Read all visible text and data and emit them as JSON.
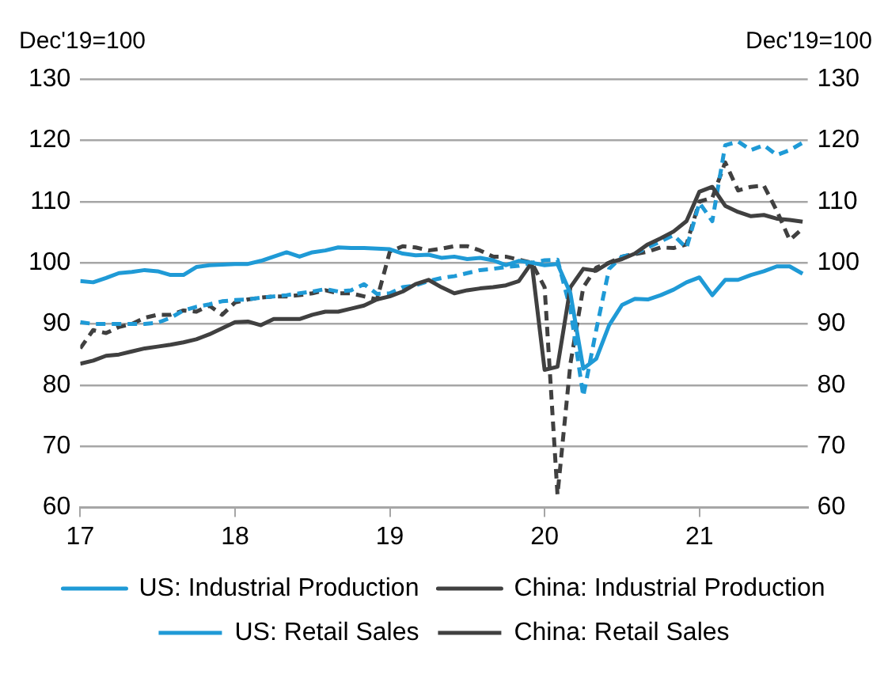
{
  "chart_data": {
    "type": "line",
    "ylabel": "Dec'19=100",
    "y2label": "Dec'19=100",
    "x": [
      17,
      17.0833,
      17.1667,
      17.25,
      17.3333,
      17.4167,
      17.5,
      17.5833,
      17.6667,
      17.75,
      17.8333,
      17.9167,
      18,
      18.0833,
      18.1667,
      18.25,
      18.3333,
      18.4167,
      18.5,
      18.5833,
      18.6667,
      18.75,
      18.8333,
      18.9167,
      19,
      19.0833,
      19.1667,
      19.25,
      19.3333,
      19.4167,
      19.5,
      19.5833,
      19.6667,
      19.75,
      19.8333,
      19.9167,
      20,
      20.0833,
      20.1667,
      20.25,
      20.3333,
      20.4167,
      20.5,
      20.5833,
      20.6667,
      20.75,
      20.8333,
      20.9167,
      21,
      21.0833,
      21.1667,
      21.25,
      21.3333,
      21.4167,
      21.5,
      21.5833,
      21.6667
    ],
    "series": [
      {
        "name": "US: Industrial Production",
        "color": "#1f9ad6",
        "line_style": "solid",
        "values": [
          97,
          96.8,
          97.5,
          98.3,
          98.5,
          98.8,
          98.6,
          98,
          98,
          99.3,
          99.6,
          99.7,
          99.8,
          99.8,
          100.3,
          101,
          101.7,
          101,
          101.7,
          102,
          102.5,
          102.4,
          102.4,
          102.3,
          102.2,
          101.5,
          101.2,
          101.3,
          100.8,
          101,
          100.6,
          100.8,
          100.4,
          99.6,
          100.3,
          100,
          99.6,
          99.8,
          95,
          82.7,
          84.3,
          89.8,
          93.1,
          94.1,
          94,
          94.7,
          95.6,
          96.8,
          97.6,
          94.7,
          97.2,
          97.2,
          98,
          98.6,
          99.4,
          99.4,
          98.2
        ]
      },
      {
        "name": "China: Industrial Production",
        "color": "#404040",
        "line_style": "solid",
        "values": [
          83.5,
          84,
          84.8,
          85,
          85.5,
          86,
          86.3,
          86.6,
          87,
          87.5,
          88.3,
          89.3,
          90.3,
          90.4,
          89.8,
          90.8,
          90.8,
          90.8,
          91.5,
          92,
          92,
          92.5,
          93,
          94,
          94.5,
          95.3,
          96.5,
          97.2,
          96,
          95,
          95.5,
          95.8,
          96,
          96.3,
          97,
          100,
          82.5,
          83,
          96,
          99,
          98.7,
          100,
          100.6,
          101.5,
          103,
          104,
          105.1,
          106.8,
          111.6,
          112.4,
          109.3,
          108.3,
          107.6,
          107.8,
          107.2,
          107,
          106.7
        ]
      },
      {
        "name": "US: Retail Sales",
        "color": "#1f9ad6",
        "line_style": "dashed",
        "values": [
          90.3,
          90,
          90,
          90,
          90,
          90,
          90.2,
          91,
          92.2,
          92.8,
          93.2,
          93.7,
          93.9,
          94,
          94.3,
          94.5,
          94.7,
          95,
          95.3,
          95.7,
          95.3,
          95.5,
          96.5,
          94.9,
          95,
          96,
          96.3,
          97,
          97.5,
          97.8,
          98.3,
          98.8,
          99,
          99.3,
          99.5,
          100,
          100.4,
          100.5,
          92.4,
          78.2,
          89,
          99,
          101,
          101.5,
          102.5,
          103.5,
          104.5,
          102.4,
          109.8,
          106.8,
          119.2,
          119.8,
          118.4,
          119.2,
          117.6,
          118.4,
          119.6
        ]
      },
      {
        "name": "China: Retail Sales",
        "color": "#404040",
        "line_style": "dashed",
        "values": [
          86,
          89,
          88.5,
          89.5,
          90,
          91,
          91.5,
          91.5,
          92.2,
          92,
          93,
          91.5,
          93.5,
          94,
          94.3,
          94.5,
          94.5,
          94.7,
          95,
          95.5,
          95,
          95,
          94.5,
          94,
          101.8,
          102.7,
          102.5,
          102,
          102.3,
          102.7,
          102.7,
          102,
          101,
          101,
          100.5,
          100,
          96,
          62.1,
          83.5,
          96,
          99.2,
          100,
          101,
          101.4,
          101.8,
          102.5,
          102.4,
          103,
          110,
          110.6,
          116.4,
          111.8,
          112.4,
          112.6,
          108.5,
          103.7,
          105.6
        ]
      }
    ],
    "xlim": [
      17,
      21.7
    ],
    "xticks": [
      17,
      18,
      19,
      20,
      21
    ],
    "ylim": [
      60,
      130
    ],
    "yticks": [
      60,
      70,
      80,
      90,
      100,
      110,
      120,
      130
    ],
    "y2lim": [
      60,
      130
    ],
    "y2ticks": [
      60,
      70,
      80,
      90,
      100,
      110,
      120,
      130
    ],
    "grid": "y",
    "legend": "bottom",
    "marker": "none"
  }
}
